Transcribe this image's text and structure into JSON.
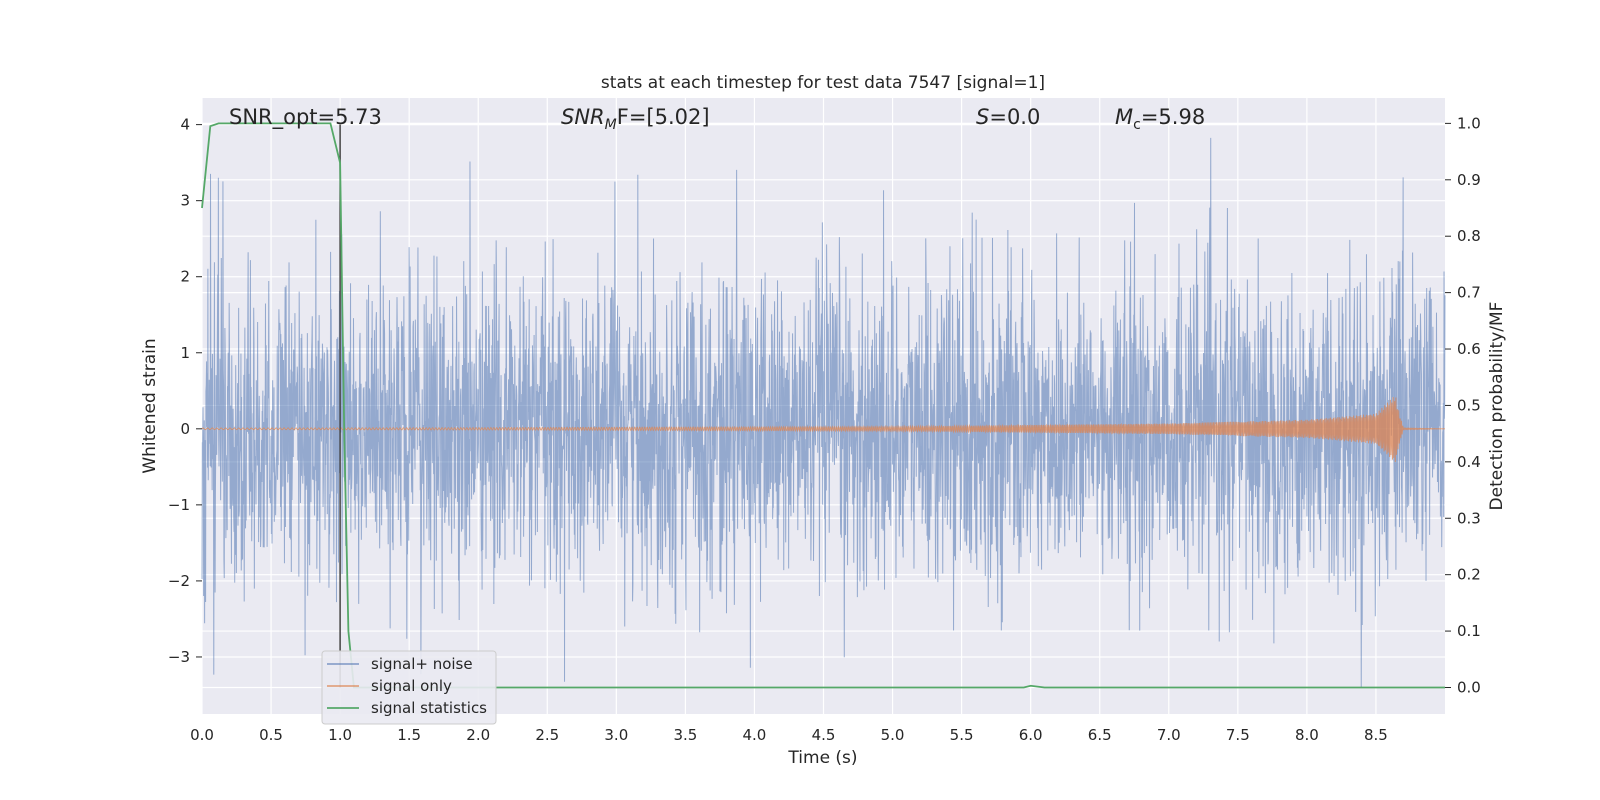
{
  "chart_data": {
    "type": "line",
    "title": "stats at each timestep for test data 7547 [signal=1]",
    "xlabel": "Time (s)",
    "ylabel_left": "Whitened strain",
    "ylabel_right": "Detection probability/MF",
    "xlim": [
      0.0,
      9.0
    ],
    "ylim_left": [
      -3.75,
      4.35
    ],
    "ylim_right": [
      -0.047,
      1.045
    ],
    "x_ticks": [
      "0.0",
      "0.5",
      "1.0",
      "1.5",
      "2.0",
      "2.5",
      "3.0",
      "3.5",
      "4.0",
      "4.5",
      "5.0",
      "5.5",
      "6.0",
      "6.5",
      "7.0",
      "7.5",
      "8.0",
      "8.5"
    ],
    "x_tick_values": [
      0,
      0.5,
      1,
      1.5,
      2,
      2.5,
      3,
      3.5,
      4,
      4.5,
      5,
      5.5,
      6,
      6.5,
      7,
      7.5,
      8,
      8.5
    ],
    "y_left_ticks": [
      "4",
      "3",
      "2",
      "1",
      "0",
      "−1",
      "−2",
      "−3"
    ],
    "y_left_tick_values": [
      4,
      3,
      2,
      1,
      0,
      -1,
      -2,
      -3
    ],
    "y_right_ticks": [
      "1.0",
      "0.9",
      "0.8",
      "0.7",
      "0.6",
      "0.5",
      "0.4",
      "0.3",
      "0.2",
      "0.1",
      "0.0"
    ],
    "y_right_tick_values": [
      1.0,
      0.9,
      0.8,
      0.7,
      0.6,
      0.5,
      0.4,
      0.3,
      0.2,
      0.1,
      0.0
    ],
    "grid": true,
    "annotations": {
      "snr_opt": "SNR_opt=5.73",
      "snr_mf_main": "SNR",
      "snr_mf_sub": "M",
      "snr_mf_rest": "F=[5.02]",
      "s_var": "S",
      "s_rest": "=0.0",
      "mc_main": "M",
      "mc_sub": "c",
      "mc_rest": "=5.98"
    },
    "vertical_line_x": 1.0,
    "series": [
      {
        "name": "signal+ noise",
        "color": "#4c72b0",
        "alpha": 0.5,
        "axis": "left",
        "description_values": "noise, mostly within ±2, peaks up to ~4 and down to ~-3.4"
      },
      {
        "name": "signal only",
        "color": "#dd8452",
        "axis": "left",
        "envelope": {
          "x": [
            0,
            2.0,
            5.0,
            7.0,
            8.0,
            8.5,
            8.64,
            8.67,
            8.7,
            9.0
          ],
          "amp": [
            0.01,
            0.015,
            0.03,
            0.07,
            0.12,
            0.2,
            0.45,
            0.2,
            0.01,
            0.0
          ]
        }
      },
      {
        "name": "signal statistics",
        "color": "#55a868",
        "axis": "right",
        "x": [
          0.0,
          0.06,
          0.12,
          0.2,
          0.5,
          0.93,
          1.0,
          1.03,
          1.06,
          1.1,
          2.0,
          4.0,
          5.95,
          6.0,
          6.1,
          7.0,
          9.0
        ],
        "y": [
          0.85,
          0.995,
          1.0,
          1.0,
          1.0,
          1.0,
          0.93,
          0.45,
          0.1,
          0.0,
          0.0,
          0.0,
          0.0,
          0.003,
          0.0,
          0.0,
          0.0
        ]
      }
    ],
    "legend": {
      "placement": "lower-left",
      "entries": [
        "signal+ noise",
        "signal only",
        "signal statistics"
      ]
    }
  }
}
